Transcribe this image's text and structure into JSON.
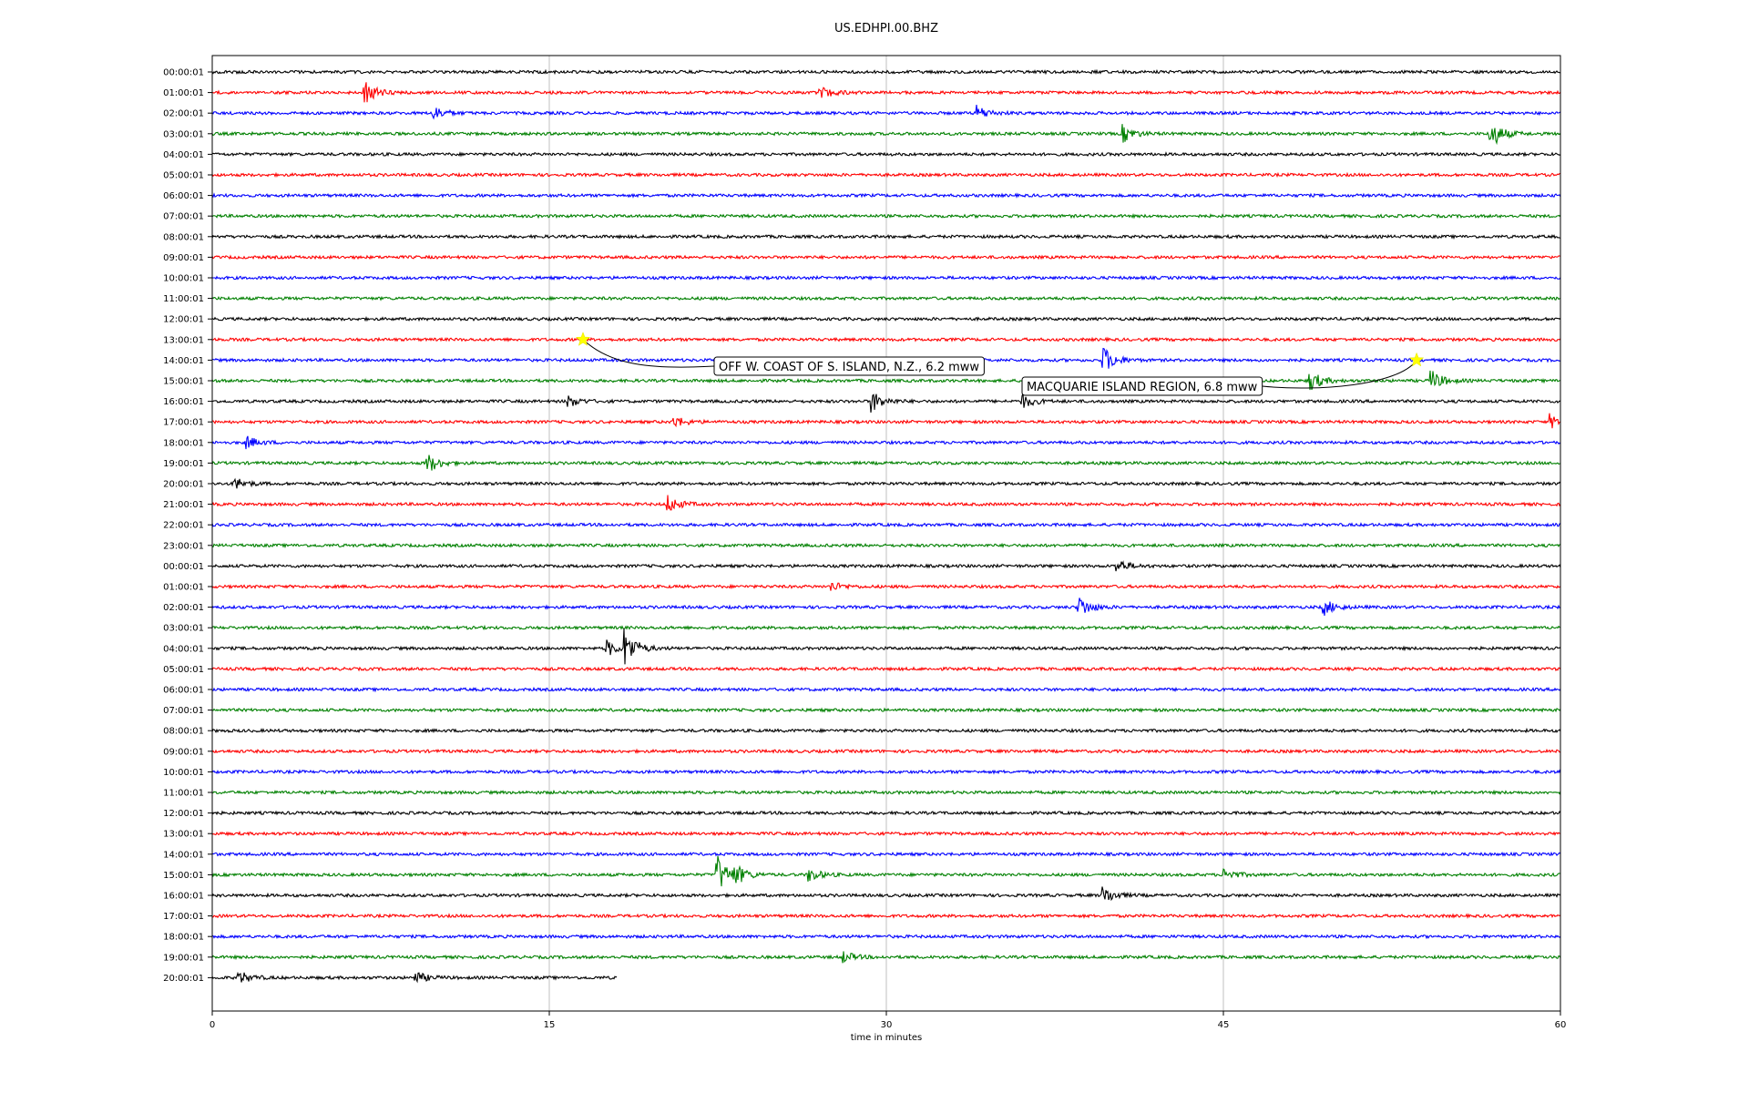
{
  "chart_data": {
    "type": "line",
    "title": "US.EDHPI.00.BHZ",
    "xlabel": "time in minutes",
    "xlim": [
      0,
      60
    ],
    "x_ticks": [
      "0",
      "15",
      "30",
      "45",
      "60"
    ],
    "x_tick_values": [
      0,
      15,
      30,
      45,
      60
    ],
    "vertical_grid": true,
    "trace_colors": [
      "#000000",
      "#ff0000",
      "#0000ff",
      "#008000"
    ],
    "row_labels": [
      "00:00:01",
      "01:00:01",
      "02:00:01",
      "03:00:01",
      "04:00:01",
      "05:00:01",
      "06:00:01",
      "07:00:01",
      "08:00:01",
      "09:00:01",
      "10:00:01",
      "11:00:01",
      "12:00:01",
      "13:00:01",
      "14:00:01",
      "15:00:01",
      "16:00:01",
      "17:00:01",
      "18:00:01",
      "19:00:01",
      "20:00:01",
      "21:00:01",
      "22:00:01",
      "23:00:01",
      "00:00:01",
      "01:00:01",
      "02:00:01",
      "03:00:01",
      "04:00:01",
      "05:00:01",
      "06:00:01",
      "07:00:01",
      "08:00:01",
      "09:00:01",
      "10:00:01",
      "11:00:01",
      "12:00:01",
      "13:00:01",
      "14:00:01",
      "15:00:01",
      "16:00:01",
      "17:00:01",
      "18:00:01",
      "19:00:01",
      "20:00:01"
    ],
    "last_row_end_minute": 18,
    "events": [
      {
        "minute": 6.7,
        "row": 1,
        "amp": 1.0
      },
      {
        "minute": 27,
        "row": 1,
        "amp": 0.6
      },
      {
        "minute": 9.8,
        "row": 2,
        "amp": 0.6
      },
      {
        "minute": 34,
        "row": 2,
        "amp": 0.6
      },
      {
        "minute": 40.5,
        "row": 3,
        "amp": 0.7
      },
      {
        "minute": 56.8,
        "row": 3,
        "amp": 1.4
      },
      {
        "minute": 39.6,
        "row": 14,
        "amp": 1.2
      },
      {
        "minute": 48.8,
        "row": 15,
        "amp": 0.9
      },
      {
        "minute": 54.2,
        "row": 15,
        "amp": 0.9
      },
      {
        "minute": 15.8,
        "row": 16,
        "amp": 0.5
      },
      {
        "minute": 29.3,
        "row": 16,
        "amp": 0.9
      },
      {
        "minute": 36,
        "row": 16,
        "amp": 0.6
      },
      {
        "minute": 20.5,
        "row": 17,
        "amp": 0.5
      },
      {
        "minute": 59.5,
        "row": 17,
        "amp": 0.6
      },
      {
        "minute": 1.5,
        "row": 18,
        "amp": 0.5
      },
      {
        "minute": 9.5,
        "row": 19,
        "amp": 0.9
      },
      {
        "minute": 0.9,
        "row": 20,
        "amp": 0.6
      },
      {
        "minute": 20.2,
        "row": 21,
        "amp": 0.8
      },
      {
        "minute": 40.2,
        "row": 24,
        "amp": 0.6
      },
      {
        "minute": 27.5,
        "row": 25,
        "amp": 0.4
      },
      {
        "minute": 38.5,
        "row": 26,
        "amp": 1.0
      },
      {
        "minute": 49.4,
        "row": 26,
        "amp": 0.7
      },
      {
        "minute": 17.5,
        "row": 28,
        "amp": 0.7
      },
      {
        "minute": 18.3,
        "row": 28,
        "amp": 1.6
      },
      {
        "minute": 22.4,
        "row": 39,
        "amp": 1.8
      },
      {
        "minute": 23.2,
        "row": 39,
        "amp": 0.7
      },
      {
        "minute": 26.5,
        "row": 39,
        "amp": 0.6
      },
      {
        "minute": 45,
        "row": 39,
        "amp": 0.5
      },
      {
        "minute": 39.6,
        "row": 40,
        "amp": 0.8
      },
      {
        "minute": 28,
        "row": 43,
        "amp": 0.5
      },
      {
        "minute": 1.1,
        "row": 44,
        "amp": 0.6
      },
      {
        "minute": 9,
        "row": 44,
        "amp": 0.5
      }
    ],
    "annotations": [
      {
        "text": "OFF W. COAST OF S. ISLAND, N.Z., 6.2 mww",
        "row": 13,
        "minute": 16.5
      },
      {
        "text": "MACQUARIE ISLAND REGION, 6.8 mww",
        "row": 14,
        "minute": 53.6
      }
    ]
  }
}
